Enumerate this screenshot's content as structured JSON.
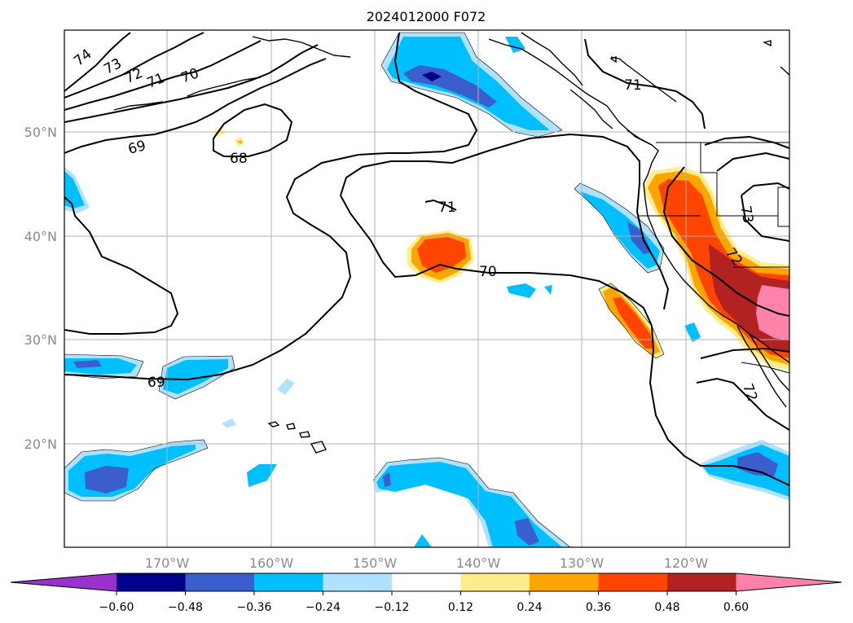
{
  "title": "2024012000 F072",
  "latitude_labels": [
    "50°N",
    "40°N",
    "30°N",
    "20°N"
  ],
  "longitude_labels": [
    "170°W",
    "160°W",
    "150°W",
    "140°W",
    "130°W",
    "120°W"
  ],
  "contour_labels": [
    "74",
    "73",
    "72",
    "71",
    "70",
    "69",
    "68",
    "71",
    "70",
    "69",
    "71",
    "73",
    "72",
    "72"
  ],
  "colorbar": {
    "ticks": [
      "−0.60",
      "−0.48",
      "−0.36",
      "−0.24",
      "−0.12",
      "0.12",
      "0.24",
      "0.36",
      "0.48",
      "0.60"
    ],
    "colors": [
      "#9932cc",
      "#00008b",
      "#3a5fcd",
      "#00bfff",
      "#b0e2ff",
      "#ffffff",
      "#ffec8b",
      "#ffa500",
      "#ff4500",
      "#b22222",
      "#ff82ab"
    ]
  },
  "colors": {
    "contour": "#000000",
    "gridline": "#b0b0b0",
    "axis_label": "#8a8a8a"
  }
}
